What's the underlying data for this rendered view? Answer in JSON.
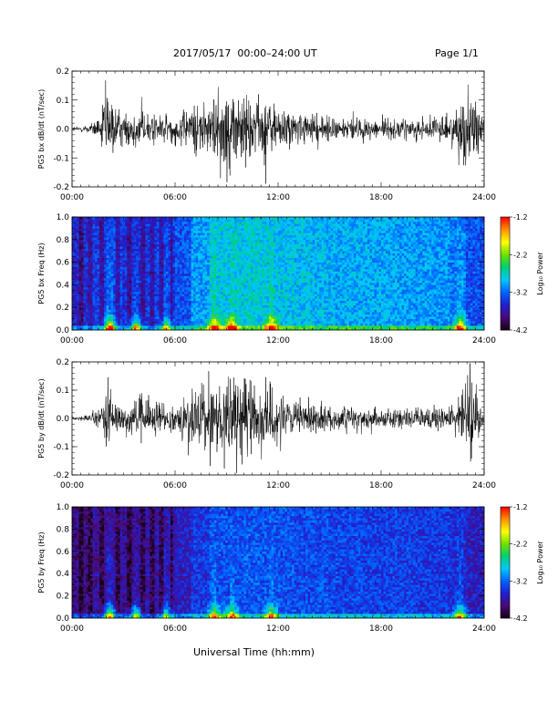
{
  "header": {
    "title": "2017/05/17  00:00–24:00 UT",
    "page": "Page 1/1"
  },
  "footer": {
    "xlabel": "Universal Time (hh:mm)"
  },
  "chart_data": [
    {
      "type": "line",
      "title": "",
      "xlabel": "",
      "ylabel": "PG5 bx dB/dt (nT/sec)",
      "xlim": [
        0,
        24
      ],
      "ylim": [
        -0.2,
        0.2
      ],
      "x_tick_labels": [
        "00:00",
        "06:00",
        "12:00",
        "18:00",
        "24:00"
      ],
      "y_tick_labels": [
        "0.2",
        "0.1",
        "0.0",
        "-0.1",
        "-0.2"
      ],
      "envelope": {
        "hours": [
          0,
          1,
          1.6,
          2.0,
          2.3,
          3.0,
          4.0,
          5.0,
          6.0,
          7.0,
          8.0,
          9.0,
          10.0,
          11.0,
          12.0,
          13.0,
          15.0,
          17.0,
          19.0,
          21.0,
          22.3,
          22.8,
          23.3,
          24.0
        ],
        "amplitude": [
          0.012,
          0.02,
          0.06,
          0.2,
          0.12,
          0.07,
          0.1,
          0.08,
          0.06,
          0.12,
          0.15,
          0.18,
          0.2,
          0.16,
          0.12,
          0.08,
          0.06,
          0.05,
          0.05,
          0.05,
          0.08,
          0.2,
          0.2,
          0.06
        ]
      },
      "line_color": "#000000"
    },
    {
      "type": "heatmap",
      "title": "",
      "xlabel": "",
      "ylabel": "PG5 bx Freq (Hz)",
      "xlim": [
        0,
        24
      ],
      "ylim": [
        0,
        1.0
      ],
      "x_tick_labels": [
        "00:00",
        "06:00",
        "12:00",
        "18:00",
        "24:00"
      ],
      "y_tick_labels": [
        "1.0",
        "0.8",
        "0.6",
        "0.4",
        "0.2",
        "0.0"
      ],
      "colorbar": {
        "label": "Log₁₀ Power",
        "range": [
          -4.2,
          -1.2
        ],
        "tick_labels": [
          "-1.2",
          "-2.2",
          "-3.2",
          "-4.2"
        ]
      },
      "colormap": [
        "#140014",
        "#4a0a78",
        "#2020d0",
        "#0064ff",
        "#00c8ff",
        "#00d070",
        "#70e000",
        "#ffff00",
        "#ff9000",
        "#ff0000"
      ],
      "background_level": [
        0.22,
        0.26,
        0.28,
        0.24,
        0.26,
        0.27,
        0.3,
        0.4,
        0.46,
        0.46,
        0.47,
        0.46,
        0.45,
        0.44,
        0.43,
        0.42,
        0.42,
        0.41,
        0.41,
        0.4,
        0.4,
        0.39,
        0.36,
        0.3,
        0.26
      ],
      "low_freq_bursts": [
        {
          "hour": 2.2,
          "strength": 0.95
        },
        {
          "hour": 3.7,
          "strength": 0.8
        },
        {
          "hour": 5.5,
          "strength": 0.7
        },
        {
          "hour": 8.3,
          "strength": 0.75
        },
        {
          "hour": 9.3,
          "strength": 0.85
        },
        {
          "hour": 11.6,
          "strength": 0.85
        },
        {
          "hour": 22.6,
          "strength": 0.85
        }
      ],
      "dark_stripes": [
        0.5,
        1.1,
        1.7,
        2.7,
        3.3,
        4.1,
        4.7,
        5.2,
        5.8
      ]
    },
    {
      "type": "line",
      "title": "",
      "xlabel": "",
      "ylabel": "PG5 by dB/dt (nT/sec)",
      "xlim": [
        0,
        24
      ],
      "ylim": [
        -0.2,
        0.2
      ],
      "x_tick_labels": [
        "00:00",
        "06:00",
        "12:00",
        "18:00",
        "24:00"
      ],
      "y_tick_labels": [
        "0.2",
        "0.1",
        "0.0",
        "-0.1",
        "-0.2"
      ],
      "envelope": {
        "hours": [
          0,
          1,
          1.6,
          2.0,
          2.3,
          3.0,
          4.0,
          5.0,
          6.0,
          7.0,
          8.0,
          9.0,
          10.0,
          11.0,
          12.0,
          13.0,
          15.0,
          17.0,
          19.0,
          21.0,
          22.3,
          22.8,
          23.3,
          24.0
        ],
        "amplitude": [
          0.01,
          0.015,
          0.06,
          0.2,
          0.1,
          0.07,
          0.1,
          0.08,
          0.05,
          0.15,
          0.18,
          0.2,
          0.2,
          0.18,
          0.12,
          0.08,
          0.06,
          0.05,
          0.05,
          0.05,
          0.08,
          0.2,
          0.2,
          0.05
        ]
      },
      "line_color": "#000000"
    },
    {
      "type": "heatmap",
      "title": "",
      "xlabel": "",
      "ylabel": "PG5 by Freq (Hz)",
      "xlim": [
        0,
        24
      ],
      "ylim": [
        0,
        1.0
      ],
      "x_tick_labels": [
        "00:00",
        "06:00",
        "12:00",
        "18:00",
        "24:00"
      ],
      "y_tick_labels": [
        "1.0",
        "0.8",
        "0.6",
        "0.4",
        "0.2",
        "0.0"
      ],
      "colorbar": {
        "label": "Log₁₀ Power",
        "range": [
          -4.2,
          -1.2
        ],
        "tick_labels": [
          "-1.2",
          "-2.2",
          "-3.2",
          "-4.2"
        ]
      },
      "colormap": [
        "#140014",
        "#4a0a78",
        "#2020d0",
        "#0064ff",
        "#00c8ff",
        "#00d070",
        "#70e000",
        "#ffff00",
        "#ff9000",
        "#ff0000"
      ],
      "background_level": [
        0.12,
        0.15,
        0.16,
        0.14,
        0.16,
        0.17,
        0.2,
        0.26,
        0.3,
        0.3,
        0.31,
        0.3,
        0.3,
        0.29,
        0.29,
        0.28,
        0.28,
        0.27,
        0.27,
        0.27,
        0.26,
        0.26,
        0.24,
        0.2,
        0.16
      ],
      "low_freq_bursts": [
        {
          "hour": 2.2,
          "strength": 0.9
        },
        {
          "hour": 3.7,
          "strength": 0.8
        },
        {
          "hour": 5.5,
          "strength": 0.7
        },
        {
          "hour": 8.3,
          "strength": 0.8
        },
        {
          "hour": 9.3,
          "strength": 0.85
        },
        {
          "hour": 11.6,
          "strength": 0.85
        },
        {
          "hour": 22.6,
          "strength": 0.8
        }
      ],
      "dark_stripes": [
        0.5,
        1.1,
        1.7,
        2.7,
        3.3,
        4.1,
        4.7,
        5.2,
        5.8
      ]
    }
  ]
}
